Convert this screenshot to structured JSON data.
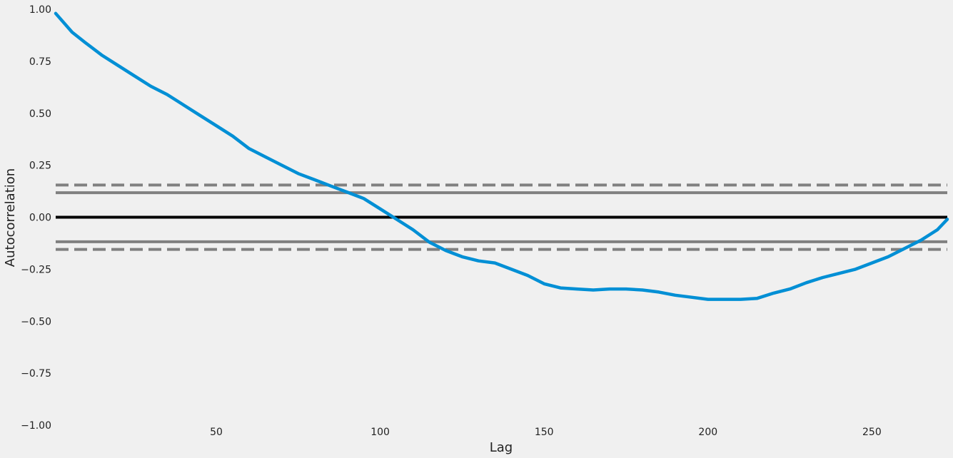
{
  "chart_data": {
    "type": "line",
    "xlabel": "Lag",
    "ylabel": "Autocorrelation",
    "xlim": [
      1,
      273
    ],
    "ylim": [
      -1.0,
      1.0
    ],
    "xticks": [
      50,
      100,
      150,
      200,
      250
    ],
    "xtick_labels": [
      "50",
      "100",
      "150",
      "200",
      "250"
    ],
    "yticks": [
      -1.0,
      -0.75,
      -0.5,
      -0.25,
      0.0,
      0.25,
      0.5,
      0.75,
      1.0
    ],
    "ytick_labels": [
      "−1.00",
      "−0.75",
      "−0.50",
      "−0.25",
      "0.00",
      "0.25",
      "0.50",
      "0.75",
      "1.00"
    ],
    "grid": false,
    "reference_lines": [
      {
        "y": 0.155,
        "style": "dashed",
        "color": "#808080"
      },
      {
        "y": 0.118,
        "style": "solid",
        "color": "#808080"
      },
      {
        "y": 0.0,
        "style": "solid",
        "color": "#000000"
      },
      {
        "y": -0.118,
        "style": "solid",
        "color": "#808080"
      },
      {
        "y": -0.155,
        "style": "dashed",
        "color": "#808080"
      }
    ],
    "series": [
      {
        "color": "#008fd5",
        "x": [
          1,
          6,
          10,
          15,
          20,
          25,
          30,
          35,
          40,
          45,
          50,
          55,
          60,
          65,
          70,
          75,
          80,
          85,
          90,
          95,
          100,
          105,
          110,
          115,
          120,
          125,
          130,
          135,
          140,
          145,
          150,
          155,
          160,
          165,
          170,
          175,
          180,
          185,
          190,
          195,
          200,
          205,
          210,
          215,
          220,
          225,
          230,
          235,
          240,
          245,
          250,
          255,
          260,
          265,
          270,
          273
        ],
        "y": [
          0.98,
          0.89,
          0.84,
          0.78,
          0.73,
          0.68,
          0.63,
          0.59,
          0.54,
          0.49,
          0.44,
          0.39,
          0.33,
          0.29,
          0.25,
          0.21,
          0.18,
          0.15,
          0.12,
          0.09,
          0.04,
          -0.01,
          -0.06,
          -0.12,
          -0.16,
          -0.19,
          -0.21,
          -0.22,
          -0.25,
          -0.28,
          -0.32,
          -0.34,
          -0.345,
          -0.35,
          -0.345,
          -0.345,
          -0.35,
          -0.36,
          -0.375,
          -0.385,
          -0.395,
          -0.395,
          -0.395,
          -0.39,
          -0.365,
          -0.345,
          -0.315,
          -0.29,
          -0.27,
          -0.25,
          -0.22,
          -0.19,
          -0.15,
          -0.11,
          -0.06,
          -0.01
        ]
      }
    ]
  }
}
